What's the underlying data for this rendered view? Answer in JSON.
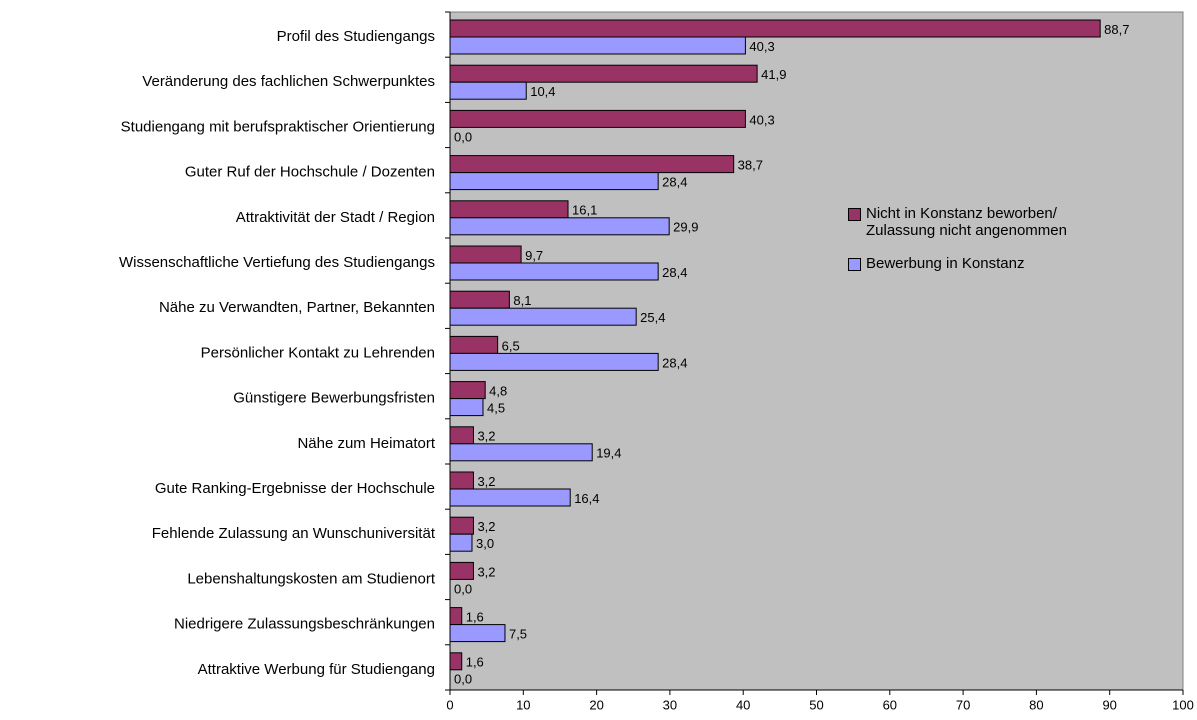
{
  "chart_data": {
    "type": "bar",
    "orientation": "horizontal",
    "categories": [
      "Profil des Studiengangs",
      "Veränderung des fachlichen Schwerpunktes",
      "Studiengang mit berufspraktischer Orientierung",
      "Guter Ruf der Hochschule / Dozenten",
      "Attraktivität der Stadt / Region",
      "Wissenschaftliche Vertiefung des Studiengangs",
      "Nähe zu Verwandten, Partner, Bekannten",
      "Persönlicher Kontakt zu Lehrenden",
      "Günstigere Bewerbungsfristen",
      "Nähe zum Heimatort",
      "Gute Ranking-Ergebnisse der Hochschule",
      "Fehlende Zulassung an Wunschuniversität",
      "Lebenshaltungskosten am Studienort",
      "Niedrigere Zulassungsbeschränkungen",
      "Attraktive Werbung für Studiengang"
    ],
    "series": [
      {
        "name": "Nicht in Konstanz beworben/ Zulassung nicht angenommen",
        "color": "#993366",
        "values": [
          88.7,
          41.9,
          40.3,
          38.7,
          16.1,
          9.7,
          8.1,
          6.5,
          4.8,
          3.2,
          3.2,
          3.2,
          3.2,
          1.6,
          1.6
        ],
        "value_labels": [
          "88,7",
          "41,9",
          "40,3",
          "38,7",
          "16,1",
          "9,7",
          "8,1",
          "6,5",
          "4,8",
          "3,2",
          "3,2",
          "3,2",
          "3,2",
          "1,6",
          "1,6"
        ]
      },
      {
        "name": "Bewerbung in Konstanz",
        "color": "#9999ff",
        "values": [
          40.3,
          10.4,
          0.0,
          28.4,
          29.9,
          28.4,
          25.4,
          28.4,
          4.5,
          19.4,
          16.4,
          3.0,
          0.0,
          7.5,
          0.0
        ],
        "value_labels": [
          "40,3",
          "10,4",
          "0,0",
          "28,4",
          "29,9",
          "28,4",
          "25,4",
          "28,4",
          "4,5",
          "19,4",
          "16,4",
          "3,0",
          "0,0",
          "7,5",
          "0,0"
        ]
      }
    ],
    "xlim": [
      0,
      100
    ],
    "xticks": [
      0,
      10,
      20,
      30,
      40,
      50,
      60,
      70,
      80,
      90,
      100
    ],
    "legend": "right",
    "background": "#c0c0c0"
  }
}
